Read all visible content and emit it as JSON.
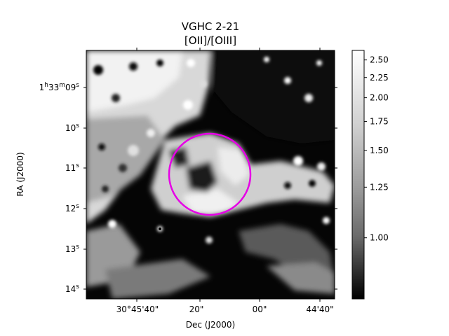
{
  "chart_data": {
    "type": "heatmap",
    "title_line1": "VGHC 2-21",
    "title_line2": "[OII]/[OIII]",
    "colormap": "gray",
    "xlabel": "Dec (J2000)",
    "ylabel": "RA (J2000)",
    "x_ticks": [
      "30°45'40\"",
      "20\"",
      "00\"",
      "44'40\""
    ],
    "y_ticks": [
      {
        "base": "1",
        "h": "h",
        "mm": "33",
        "m": "m",
        "ss": "09",
        "s": "s"
      },
      {
        "base": "10",
        "s": "s"
      },
      {
        "base": "11",
        "s": "s"
      },
      {
        "base": "12",
        "s": "s"
      },
      {
        "base": "13",
        "s": "s"
      },
      {
        "base": "14",
        "s": "s"
      }
    ],
    "colorbar": {
      "range": [
        0.8,
        2.65
      ],
      "ticks": [
        {
          "value": 2.5,
          "label": "2.50"
        },
        {
          "value": 2.25,
          "label": "2.25"
        },
        {
          "value": 2.0,
          "label": "2.00"
        },
        {
          "value": 1.75,
          "label": "1.75"
        },
        {
          "value": 1.5,
          "label": "1.50"
        },
        {
          "value": 1.25,
          "label": "1.25"
        },
        {
          "value": 1.0,
          "label": "1.00"
        }
      ]
    },
    "aperture": {
      "shape": "circle",
      "color": "#e600e6"
    }
  }
}
